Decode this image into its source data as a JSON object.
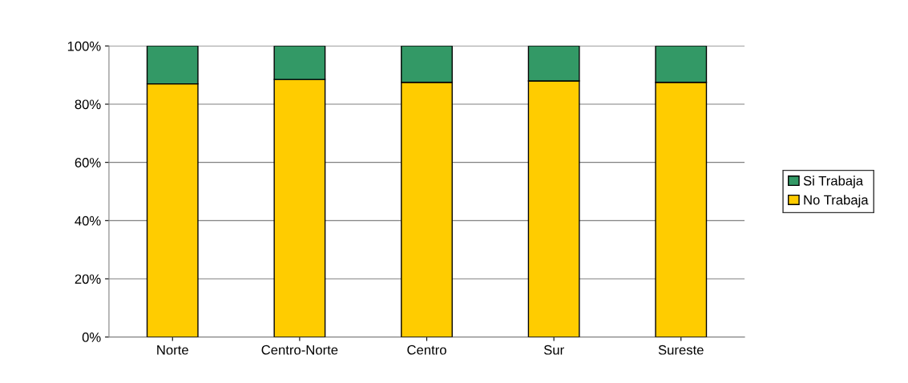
{
  "chart_data": {
    "type": "bar",
    "stacked": true,
    "categories": [
      "Norte",
      "Centro-Norte",
      "Centro",
      "Sur",
      "Sureste"
    ],
    "series": [
      {
        "name": "No Trabaja",
        "color": "#ffcc00",
        "values": [
          87,
          88.5,
          87.5,
          88,
          87.5
        ]
      },
      {
        "name": "Si Trabaja",
        "color": "#339966",
        "values": [
          13,
          11.5,
          12.5,
          12,
          12.5
        ]
      }
    ],
    "ylim": [
      0,
      100
    ],
    "yticks": [
      {
        "value": 0,
        "label": "0%"
      },
      {
        "value": 20,
        "label": "20%"
      },
      {
        "value": 40,
        "label": "40%"
      },
      {
        "value": 60,
        "label": "60%"
      },
      {
        "value": 80,
        "label": "80%"
      },
      {
        "value": 100,
        "label": "100%"
      }
    ],
    "grid": "y",
    "legend": "right"
  }
}
